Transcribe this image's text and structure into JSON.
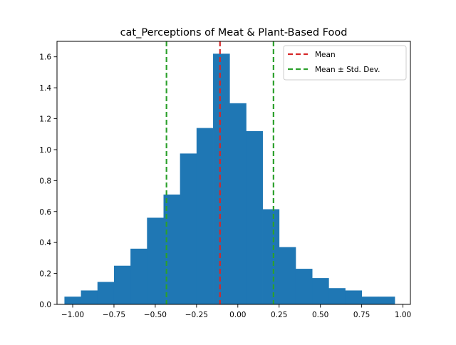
{
  "chart_data": {
    "type": "bar",
    "title": "cat_Perceptions of Meat & Plant-Based Food",
    "xlabel": "",
    "ylabel": "",
    "xlim": [
      -1.095,
      1.045
    ],
    "ylim": [
      0,
      1.7
    ],
    "grid": false,
    "legend_position": "top-right",
    "bin_edges": [
      -1.05,
      -0.95,
      -0.85,
      -0.75,
      -0.65,
      -0.55,
      -0.45,
      -0.35,
      -0.25,
      -0.15,
      -0.05,
      0.05,
      0.15,
      0.25,
      0.35,
      0.45,
      0.55,
      0.65,
      0.75,
      0.85,
      0.95
    ],
    "values": [
      0.05,
      0.09,
      0.145,
      0.25,
      0.36,
      0.56,
      0.71,
      0.975,
      1.14,
      1.62,
      1.3,
      1.12,
      0.615,
      0.37,
      0.23,
      0.17,
      0.105,
      0.09,
      0.05,
      0.05
    ],
    "bar_color": "#1f77b4",
    "x_ticks": [
      -1.0,
      -0.75,
      -0.5,
      -0.25,
      0.0,
      0.25,
      0.5,
      0.75,
      1.0
    ],
    "x_tick_labels": [
      "−1.00",
      "−0.75",
      "−0.50",
      "−0.25",
      "0.00",
      "0.25",
      "0.50",
      "0.75",
      "1.00"
    ],
    "y_ticks": [
      0.0,
      0.2,
      0.4,
      0.6,
      0.8,
      1.0,
      1.2,
      1.4,
      1.6
    ],
    "y_tick_labels": [
      "0.0",
      "0.2",
      "0.4",
      "0.6",
      "0.8",
      "1.0",
      "1.2",
      "1.4",
      "1.6"
    ],
    "vlines": [
      {
        "x": -0.108,
        "color": "#d62728",
        "style": "dashed",
        "legend": "Mean"
      },
      {
        "x": -0.432,
        "color": "#2ca02c",
        "style": "dashed",
        "legend": "Mean ± Std. Dev."
      },
      {
        "x": 0.216,
        "color": "#2ca02c",
        "style": "dashed",
        "legend": ""
      }
    ],
    "legend": [
      {
        "label": "Mean",
        "color": "#d62728"
      },
      {
        "label": "Mean ± Std. Dev.",
        "color": "#2ca02c"
      }
    ]
  }
}
